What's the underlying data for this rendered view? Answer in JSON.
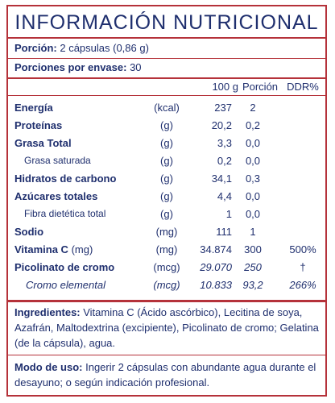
{
  "title": "INFORMACIÓN  NUTRICIONAL",
  "serving": {
    "label": "Porción:",
    "value": "2 cápsulas (0,86 g)",
    "per_container_label": "Porciones por envase:",
    "per_container_value": "30"
  },
  "table": {
    "headers": {
      "per100": "100 g",
      "portion": "Porción",
      "ddr": "DDR%"
    },
    "rows": [
      {
        "name": "Energía",
        "unit": "(kcal)",
        "per100": "237",
        "portion": "2",
        "ddr": ""
      },
      {
        "name": "Proteínas",
        "unit": "(g)",
        "per100": "20,2",
        "portion": "0,2",
        "ddr": ""
      },
      {
        "name": "Grasa Total",
        "unit": "(g)",
        "per100": "3,3",
        "portion": "0,0",
        "ddr": ""
      },
      {
        "name": "Grasa saturada",
        "unit": "(g)",
        "per100": "0,2",
        "portion": "0,0",
        "ddr": ""
      },
      {
        "name": "Hidratos de carbono",
        "unit": "(g)",
        "per100": "34,1",
        "portion": "0,3",
        "ddr": ""
      },
      {
        "name": "Azúcares totales",
        "unit": "(g)",
        "per100": "4,4",
        "portion": "0,0",
        "ddr": ""
      },
      {
        "name": "Fibra dietética total",
        "unit": "(g)",
        "per100": "1",
        "portion": "0,0",
        "ddr": ""
      },
      {
        "name": "Sodio",
        "unit": "(mg)",
        "per100": "111",
        "portion": "1",
        "ddr": ""
      },
      {
        "name": "Vitamina C",
        "name_suffix": " (mg)",
        "unit": "(mg)",
        "per100": "34.874",
        "portion": "300",
        "ddr": "500%"
      },
      {
        "name": "Picolinato de cromo",
        "unit": "(mcg)",
        "per100": "29.070",
        "portion": "250",
        "ddr": "†"
      },
      {
        "name": "Cromo elemental",
        "unit": "(mcg)",
        "per100": "10.833",
        "portion": "93,2",
        "ddr": "266%"
      }
    ]
  },
  "ingredients": {
    "label": "Ingredientes:",
    "text": " Vitamina C (Ácido ascórbico), Lecitina de soya, Azafrán, Maltodextrina (excipiente), Picolinato de cromo; Gelatina (de la cápsula), agua."
  },
  "usage": {
    "label": "Modo de uso:",
    "text": " Ingerir 2 cápsulas con abundante agua durante el desayuno; o según indicación profesional."
  },
  "colors": {
    "text": "#1f2f6e",
    "border": "#b5323a",
    "background": "#ffffff"
  }
}
